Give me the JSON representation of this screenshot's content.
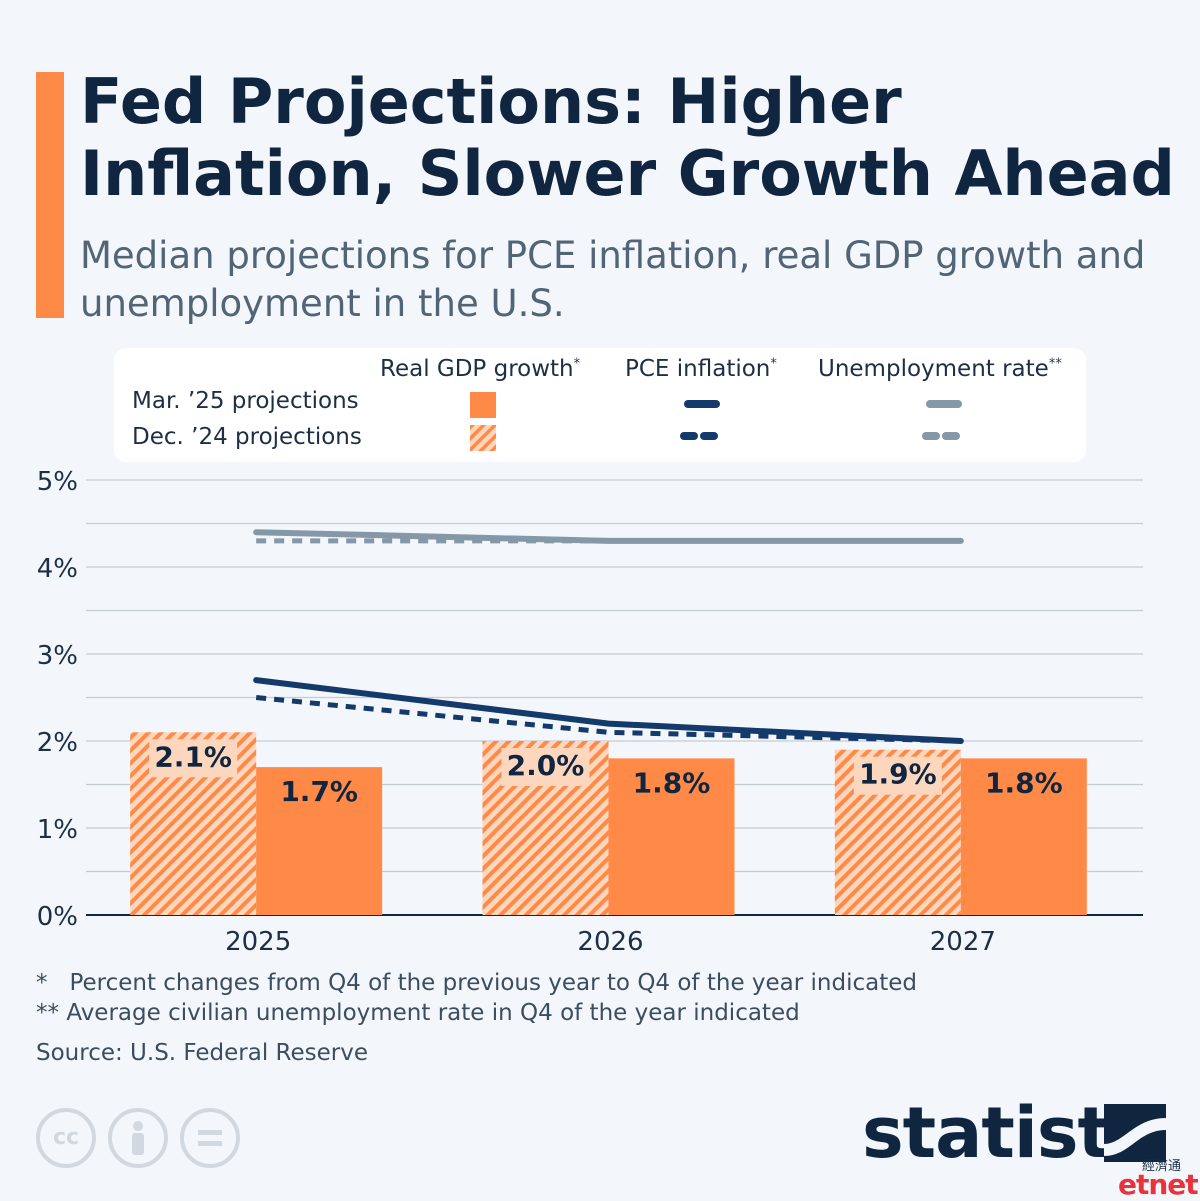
{
  "title": "Fed Projections: Higher Inflation, Slower Growth Ahead",
  "subtitle": "Median projections for PCE inflation, real GDP growth and unemployment in the U.S.",
  "legend": {
    "col_gdp": "Real GDP growth",
    "col_gdp_mark": "*",
    "col_pce": "PCE inflation",
    "col_pce_mark": "*",
    "col_unemp": "Unemployment rate",
    "col_unemp_mark": "**",
    "row_mar": "Mar. ’25 projections",
    "row_dec": "Dec. ’24 projections"
  },
  "colors": {
    "gdp": "#ff8a47",
    "gdp_dec_fill": "#fcd6bd",
    "pce": "#143a6b",
    "unemp": "#8598a8",
    "accent": "#ff8a47",
    "title": "#10253f"
  },
  "chart_data": {
    "type": "bar",
    "categories": [
      "2025",
      "2026",
      "2027"
    ],
    "series": [
      {
        "name": "Dec. ’24 projections",
        "kind": "bar",
        "pattern": "hatched",
        "values": [
          2.1,
          2.0,
          1.9
        ],
        "labels": [
          "2.1%",
          "2.0%",
          "1.9%"
        ]
      },
      {
        "name": "Mar. ’25 projections",
        "kind": "bar",
        "pattern": "solid",
        "values": [
          1.7,
          1.8,
          1.8
        ],
        "labels": [
          "1.7%",
          "1.8%",
          "1.8%"
        ]
      },
      {
        "name": "PCE inflation Mar. ’25 projections",
        "kind": "line",
        "style": "solid",
        "values": [
          2.7,
          2.2,
          2.0
        ]
      },
      {
        "name": "PCE inflation Dec. ’24 projections",
        "kind": "line",
        "style": "dashed",
        "values": [
          2.5,
          2.1,
          2.0
        ]
      },
      {
        "name": "Unemployment rate Mar. ’25 projections",
        "kind": "line",
        "style": "solid",
        "values": [
          4.4,
          4.3,
          4.3
        ]
      },
      {
        "name": "Unemployment rate Dec. ’24 projections",
        "kind": "line",
        "style": "dashed",
        "values": [
          4.3,
          4.3,
          4.3
        ]
      }
    ],
    "y_ticks": [
      "0%",
      "1%",
      "2%",
      "3%",
      "4%",
      "5%"
    ],
    "ylim": [
      0,
      5
    ],
    "grid": true,
    "legend_position": "top"
  },
  "notes": {
    "n1_mark": "*",
    "n1": "Percent changes from Q4 of the previous year to Q4 of the year indicated",
    "n2_mark": "**",
    "n2": "Average civilian unemployment rate in Q4 of the year indicated"
  },
  "source": "Source: U.S. Federal Reserve",
  "brand": "statista",
  "watermark": {
    "line1": "經濟通",
    "line2": "etnet"
  },
  "icons": [
    "cc-icon",
    "person-icon",
    "equals-icon",
    "statista-logo-icon"
  ]
}
